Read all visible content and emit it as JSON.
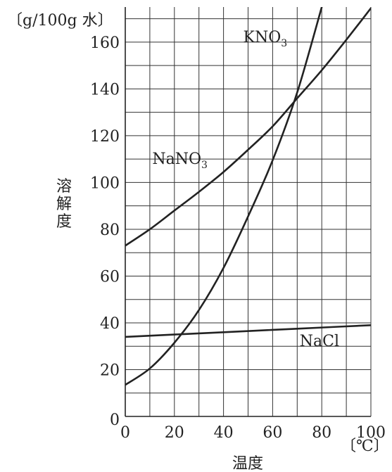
{
  "chart_data": {
    "type": "line",
    "y_unit": "〔g/100g 水〕",
    "x_unit": "〔℃〕",
    "ylabel": "溶解度",
    "xlabel": "温度",
    "xlim": [
      0,
      100
    ],
    "ylim": [
      0,
      175
    ],
    "x_ticks": [
      0,
      20,
      40,
      60,
      80,
      100
    ],
    "y_ticks": [
      20,
      40,
      60,
      80,
      100,
      120,
      140,
      160
    ],
    "y_origin_label": "0",
    "grid": true,
    "series": [
      {
        "name": "KNO₃",
        "label_main": "KNO",
        "label_sub": "3",
        "x": [
          0,
          10,
          20,
          30,
          40,
          50,
          60,
          70,
          80
        ],
        "y": [
          13.5,
          20.5,
          31.5,
          45.5,
          63.5,
          85.5,
          109.5,
          138.5,
          175
        ]
      },
      {
        "name": "NaNO₃",
        "label_main": "NaNO",
        "label_sub": "3",
        "x": [
          0,
          10,
          20,
          30,
          40,
          50,
          60,
          70,
          80,
          90,
          100
        ],
        "y": [
          73,
          80,
          88,
          96,
          104.5,
          114,
          124,
          136,
          148,
          161,
          174.5
        ]
      },
      {
        "name": "NaCl",
        "label_main": "NaCl",
        "label_sub": "",
        "x": [
          0,
          20,
          40,
          60,
          80,
          100
        ],
        "y": [
          34,
          35,
          36,
          37,
          38,
          39
        ]
      }
    ]
  }
}
